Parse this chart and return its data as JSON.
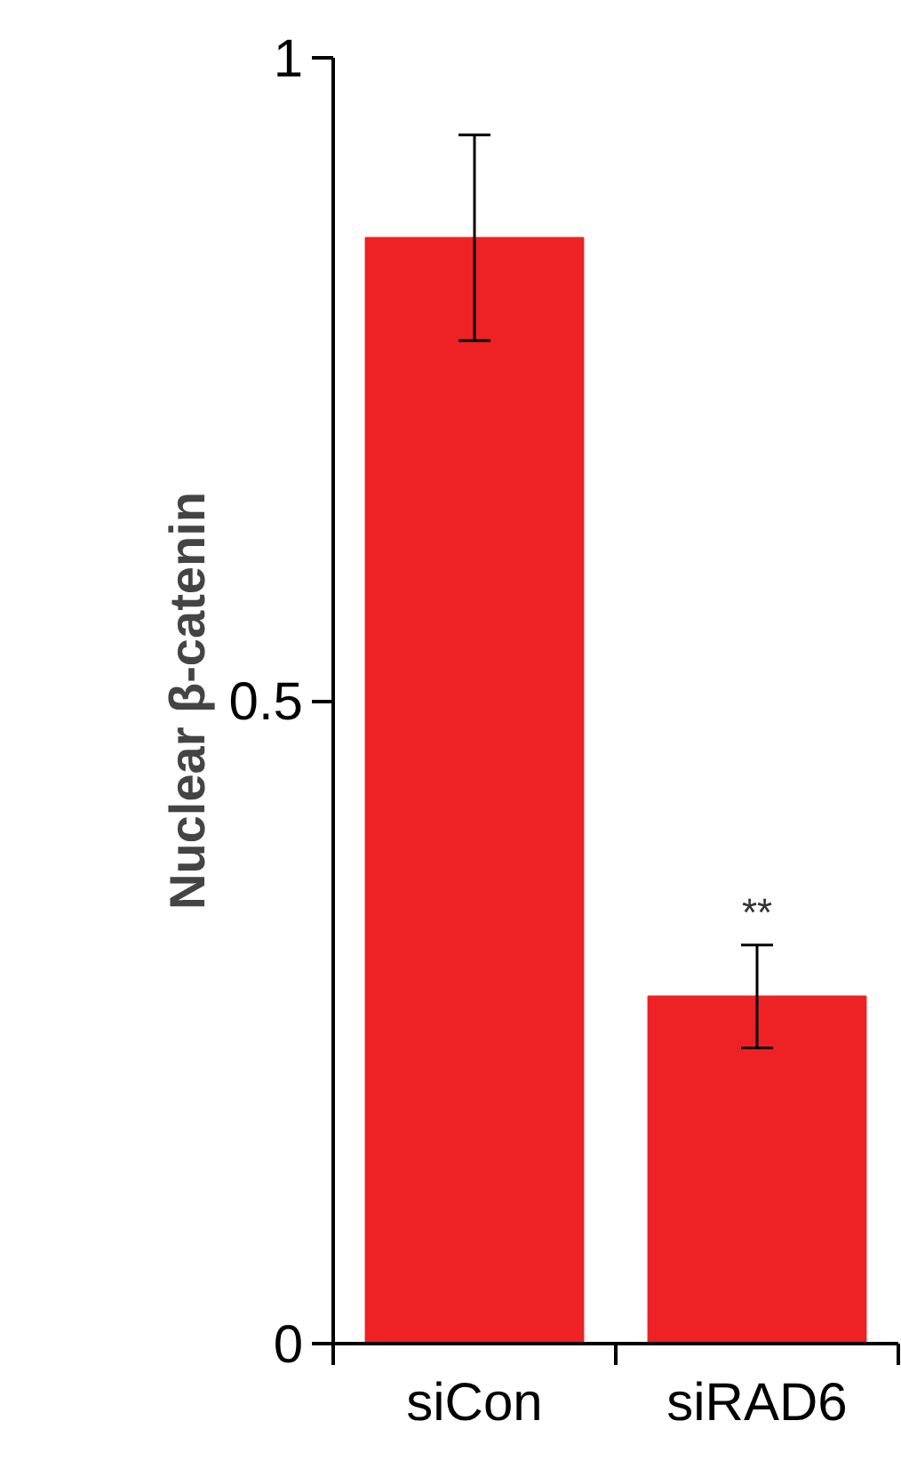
{
  "chart_data": {
    "type": "bar",
    "ylabel": "Nuclear β-catenin",
    "categories": [
      "siCon",
      "siRAD6"
    ],
    "values": [
      0.86,
      0.27
    ],
    "errors": [
      0.08,
      0.04
    ],
    "color": "#ee2224",
    "ylim": [
      0,
      1
    ],
    "yticks": [
      0,
      0.5,
      1
    ],
    "grid": false,
    "annotations": [
      "**"
    ]
  }
}
